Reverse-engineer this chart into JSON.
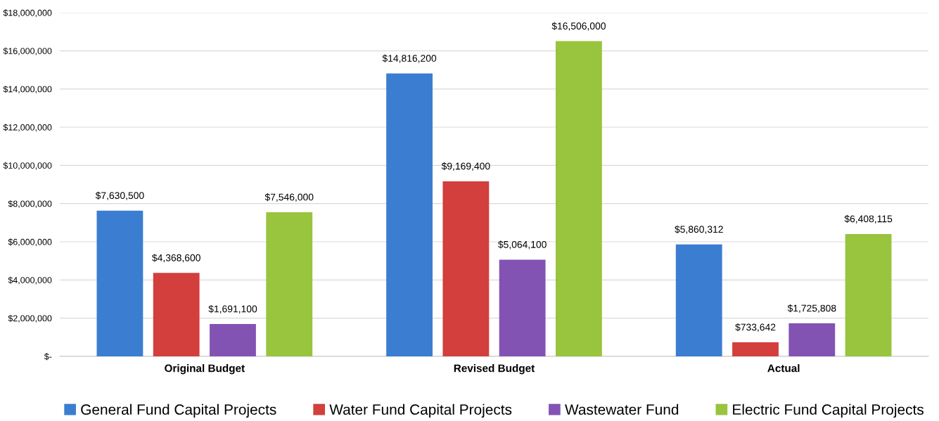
{
  "chart_data": {
    "type": "bar",
    "categories": [
      "Original Budget",
      "Revised Budget",
      "Actual"
    ],
    "series": [
      {
        "name": "General Fund Capital Projects",
        "color": "#3b7dd1",
        "values": [
          7630500,
          14816200,
          5860312
        ],
        "value_labels": [
          "$7,630,500",
          "$14,816,200",
          "$5,860,312"
        ]
      },
      {
        "name": "Water Fund Capital Projects",
        "color": "#d23f3c",
        "values": [
          4368600,
          9169400,
          733642
        ],
        "value_labels": [
          "$4,368,600",
          "$9,169,400",
          "$733,642"
        ]
      },
      {
        "name": "Wastewater Fund",
        "color": "#8353b3",
        "values": [
          1691100,
          5064100,
          1725808
        ],
        "value_labels": [
          "$1,691,100",
          "$5,064,100",
          "$1,725,808"
        ]
      },
      {
        "name": "Electric Fund Capital Projects",
        "color": "#98c43e",
        "values": [
          7546000,
          16506000,
          6408115
        ],
        "value_labels": [
          "$7,546,000",
          "$16,506,000",
          "$6,408,115"
        ]
      }
    ],
    "ylim": [
      0,
      18000000
    ],
    "yticks": [
      {
        "value": 0,
        "label": "$-"
      },
      {
        "value": 2000000,
        "label": "$2,000,000"
      },
      {
        "value": 4000000,
        "label": "$4,000,000"
      },
      {
        "value": 6000000,
        "label": "$6,000,000"
      },
      {
        "value": 8000000,
        "label": "$8,000,000"
      },
      {
        "value": 10000000,
        "label": "$10,000,000"
      },
      {
        "value": 12000000,
        "label": "$12,000,000"
      },
      {
        "value": 14000000,
        "label": "$14,000,000"
      },
      {
        "value": 16000000,
        "label": "$16,000,000"
      },
      {
        "value": 18000000,
        "label": "$18,000,000"
      }
    ],
    "grid": "y",
    "legend": "bottom"
  }
}
